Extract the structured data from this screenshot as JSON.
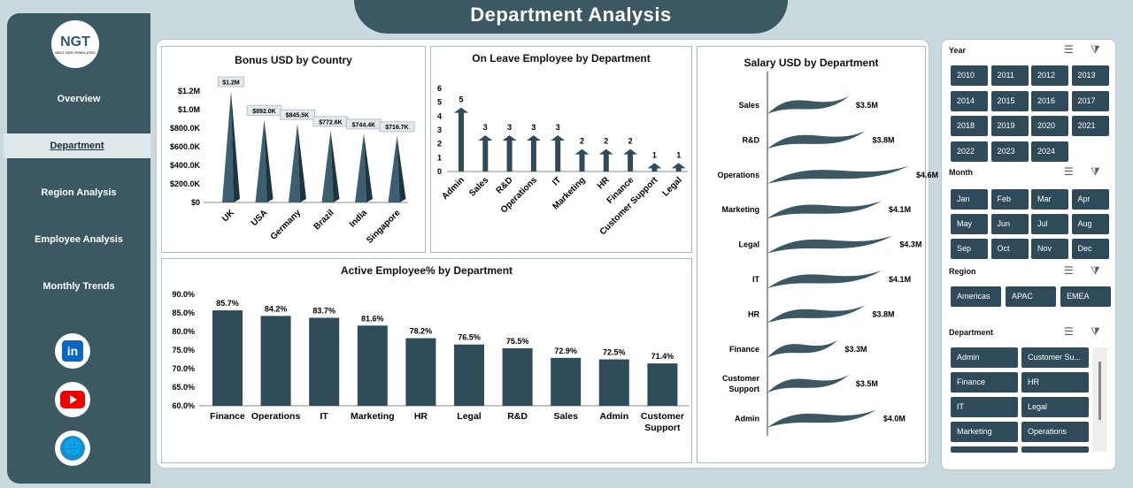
{
  "title": "Department Analysis",
  "logo": {
    "text": "NGT",
    "sub": "NEXT GEN TEMPLATES"
  },
  "nav": [
    {
      "label": "Overview"
    },
    {
      "label": "Department",
      "active": true
    },
    {
      "label": "Region Analysis"
    },
    {
      "label": "Employee Analysis"
    },
    {
      "label": "Monthly Trends"
    }
  ],
  "social": [
    "linkedin-icon",
    "youtube-icon",
    "globe-icon"
  ],
  "colors": {
    "bar": "#2f4b5a",
    "sidebar": "#3b5863",
    "background": "#c9d9de"
  },
  "chart_data": [
    {
      "type": "bar",
      "title": "Bonus USD by Country",
      "categories": [
        "UK",
        "USA",
        "Germany",
        "Brazil",
        "India",
        "Singapore"
      ],
      "values": [
        1200000,
        892000,
        845500,
        772600,
        744400,
        716700
      ],
      "data_labels": [
        "$1.2M",
        "$892.0K",
        "$845.5K",
        "$772.6K",
        "$744.4K",
        "$716.7K"
      ],
      "yticks": [
        "$0",
        "$200.0K",
        "$400.0K",
        "$600.0K",
        "$800.0K",
        "$1.0M",
        "$1.2M"
      ],
      "ylim": [
        0,
        1200000
      ]
    },
    {
      "type": "bar",
      "title": "On Leave Employee by Department",
      "categories": [
        "Admin",
        "Sales",
        "R&D",
        "Operations",
        "IT",
        "Marketing",
        "HR",
        "Finance",
        "Customer Support",
        "Legal"
      ],
      "values": [
        5,
        3,
        3,
        3,
        3,
        2,
        2,
        2,
        1,
        1
      ],
      "yticks": [
        "0",
        "1",
        "2",
        "3",
        "4",
        "5",
        "6"
      ],
      "ylim": [
        0,
        6
      ]
    },
    {
      "type": "bar",
      "title": "Active Employee% by Department",
      "categories": [
        "Finance",
        "Operations",
        "IT",
        "Marketing",
        "HR",
        "Legal",
        "R&D",
        "Sales",
        "Admin",
        "Customer Support"
      ],
      "values": [
        85.7,
        84.2,
        83.7,
        81.6,
        78.2,
        76.5,
        75.5,
        72.9,
        72.5,
        71.4
      ],
      "data_labels": [
        "85.7%",
        "84.2%",
        "83.7%",
        "81.6%",
        "78.2%",
        "76.5%",
        "75.5%",
        "72.9%",
        "72.5%",
        "71.4%"
      ],
      "yticks": [
        "60.0%",
        "65.0%",
        "70.0%",
        "75.0%",
        "80.0%",
        "85.0%",
        "90.0%"
      ],
      "ylim": [
        60,
        90
      ]
    },
    {
      "type": "bar",
      "orientation": "horizontal",
      "title": "Salary USD by Department",
      "categories": [
        "Sales",
        "R&D",
        "Operations",
        "Marketing",
        "Legal",
        "IT",
        "HR",
        "Finance",
        "Customer Support",
        "Admin"
      ],
      "values": [
        3.5,
        3.8,
        4.6,
        4.1,
        4.3,
        4.1,
        3.8,
        3.3,
        3.5,
        4.0
      ],
      "data_labels": [
        "$3.5M",
        "$3.8M",
        "$4.6M",
        "$4.1M",
        "$4.3M",
        "$4.1M",
        "$3.8M",
        "$3.3M",
        "$3.5M",
        "$4.0M"
      ]
    }
  ],
  "slicers": {
    "year": {
      "label": "Year",
      "items": [
        "2010",
        "2011",
        "2012",
        "2013",
        "2014",
        "2015",
        "2016",
        "2017",
        "2018",
        "2019",
        "2020",
        "2021",
        "2022",
        "2023",
        "2024"
      ]
    },
    "month": {
      "label": "Month",
      "items": [
        "Jan",
        "Feb",
        "Mar",
        "Apr",
        "May",
        "Jun",
        "Jul",
        "Aug",
        "Sep",
        "Oct",
        "Nov",
        "Dec"
      ]
    },
    "region": {
      "label": "Region",
      "items": [
        "Americas",
        "APAC",
        "EMEA"
      ]
    },
    "department": {
      "label": "Department",
      "items": [
        "Admin",
        "Customer Su...",
        "Finance",
        "HR",
        "IT",
        "Legal",
        "Marketing",
        "Operations",
        "",
        ""
      ]
    }
  }
}
